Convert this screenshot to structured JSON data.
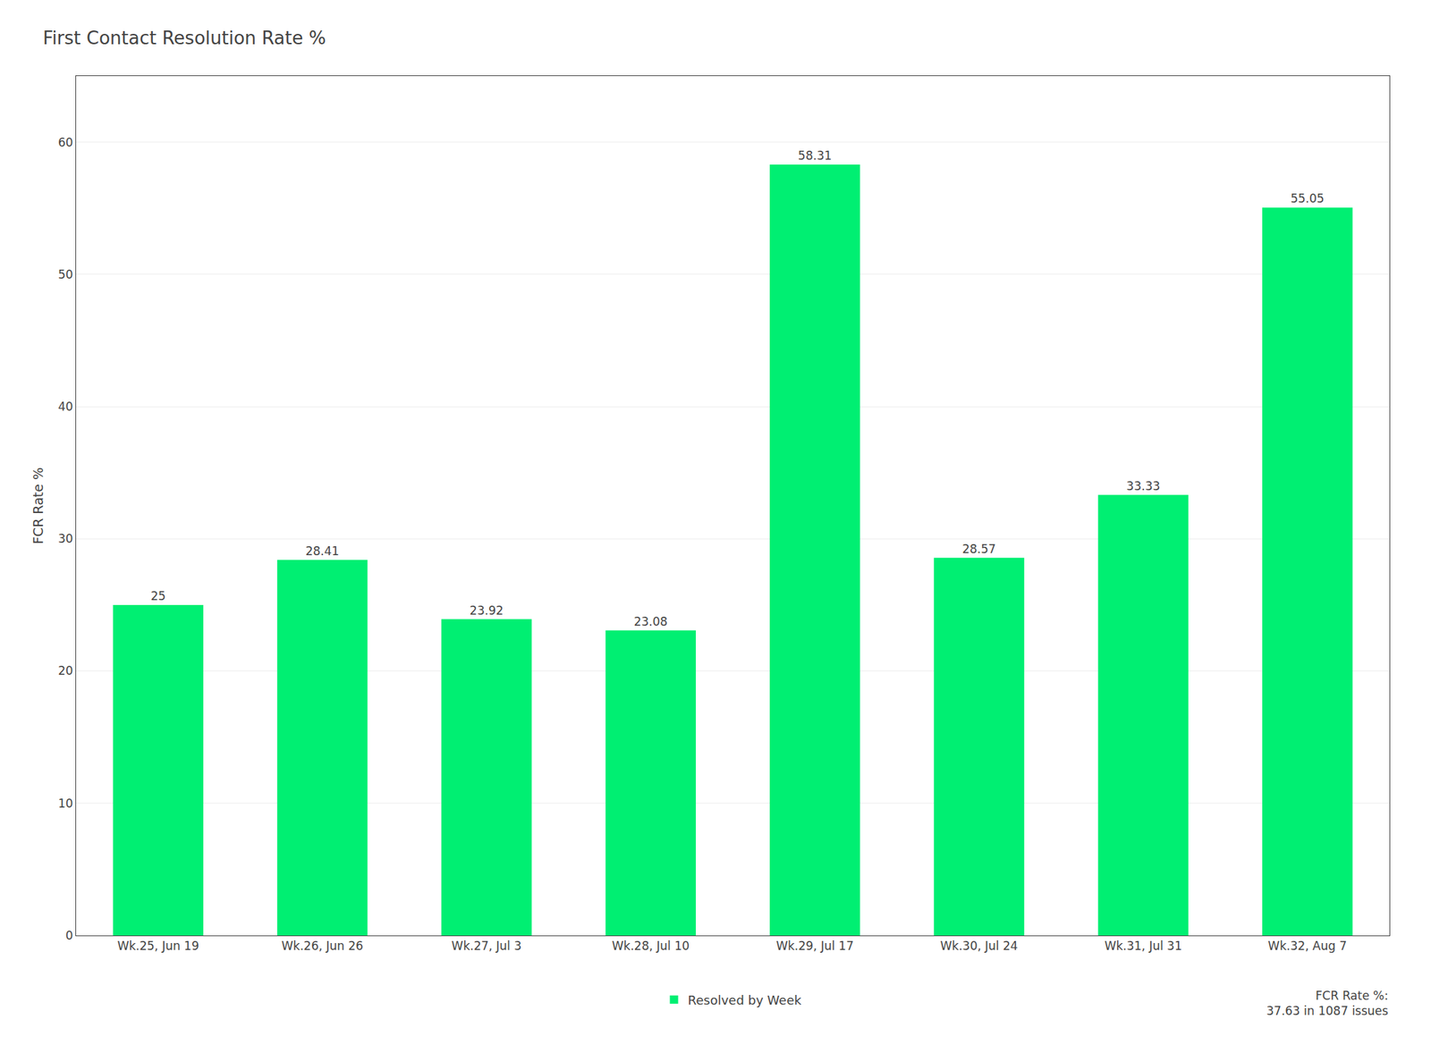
{
  "chart_data": {
    "type": "bar",
    "title": "First Contact Resolution Rate %",
    "categories": [
      "Wk.25, Jun 19",
      "Wk.26, Jun 26",
      "Wk.27, Jul 3",
      "Wk.28, Jul 10",
      "Wk.29, Jul 17",
      "Wk.30, Jul 24",
      "Wk.31, Jul 31",
      "Wk.32, Aug 7"
    ],
    "series": [
      {
        "name": "Resolved by Week",
        "color": "#00ef72",
        "values": [
          25.0,
          28.41,
          23.92,
          23.08,
          58.31,
          28.57,
          33.33,
          55.05
        ]
      }
    ],
    "ylabel": "FCR Rate %",
    "ylim": [
      0,
      65
    ],
    "yticks": [
      0,
      10,
      20,
      30,
      40,
      50,
      60
    ],
    "grid": true,
    "legend": "bottom",
    "data_labels": true,
    "annotations": [
      "FCR Rate %:",
      "37.63 in 1087 issues"
    ]
  }
}
